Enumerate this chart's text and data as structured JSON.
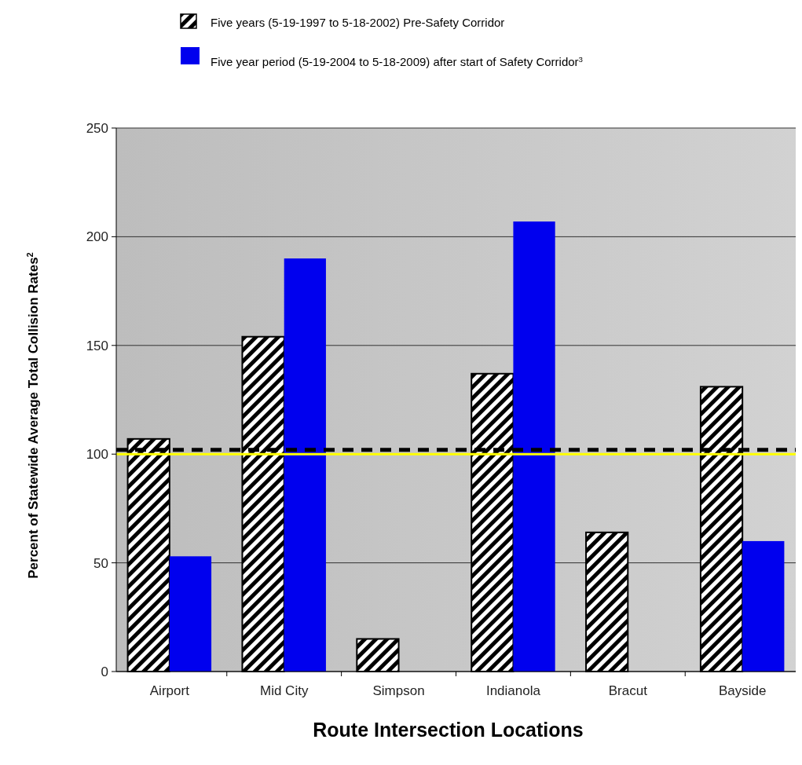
{
  "chart_data": {
    "type": "bar",
    "xlabel": "Route Intersection Locations",
    "ylabel": "Percent of Statewide Average Total Collision Rates$^{2}$",
    "categories": [
      "Airport",
      "Mid City",
      "Simpson",
      "Indianola",
      "Bracut",
      "Bayside"
    ],
    "series": [
      {
        "name": "Five years (5-19-1997 to 5-18-2002) Pre-Safety Corridor",
        "color": "#000000",
        "values": [
          107,
          154,
          15,
          137,
          64,
          131
        ]
      },
      {
        "name": "Five year period (5-19-2004 to 5-18-2009) after start of Safety Corridor$^{3}$",
        "color": "#0000ee",
        "values": [
          53,
          190,
          null,
          207,
          null,
          60
        ]
      }
    ],
    "ylim": [
      0,
      250
    ],
    "yticks": [
      0,
      50,
      100,
      150,
      200,
      250
    ],
    "grid": "y",
    "legend": "top left",
    "ref_lines": [
      {
        "axis": "y",
        "value": 100,
        "color": "#ffff00",
        "line_style": "solid"
      },
      {
        "axis": "y",
        "value": 102,
        "color": "#000000",
        "line_style": "dashed"
      }
    ]
  }
}
